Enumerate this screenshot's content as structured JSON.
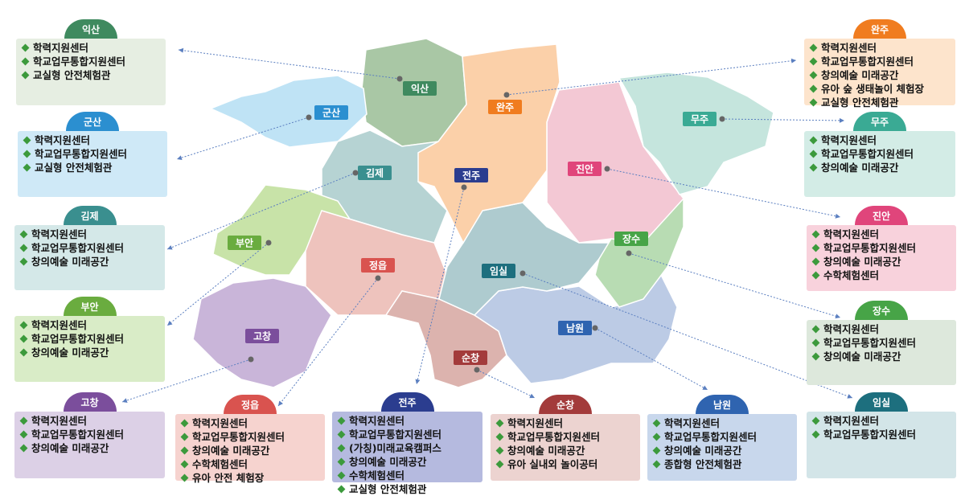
{
  "regions": [
    {
      "name": "익산",
      "color": "#3f8a5f",
      "panel": "#e6eee2",
      "map_color": "#a9c7a5",
      "items": [
        "학력지원센터",
        "학교업무통합지원센터",
        "교실형 안전체험관"
      ]
    },
    {
      "name": "군산",
      "color": "#2b8fd0",
      "panel": "#cfe9f7",
      "map_color": "#bfe3f5",
      "items": [
        "학력지원센터",
        "학교업무통합지원센터",
        "교실형 안전체험관"
      ]
    },
    {
      "name": "김제",
      "color": "#3a8f8f",
      "panel": "#d4e8e8",
      "map_color": "#b6d3d3",
      "items": [
        "학력지원센터",
        "학교업무통합지원센터",
        "창의예술 미래공간"
      ]
    },
    {
      "name": "부안",
      "color": "#6aac3f",
      "panel": "#d9ecc7",
      "map_color": "#c8e3a8",
      "items": [
        "학력지원센터",
        "학교업무통합지원센터",
        "창의예술 미래공간"
      ]
    },
    {
      "name": "고창",
      "color": "#7b4e9c",
      "panel": "#dcd0e6",
      "map_color": "#c9b5d9",
      "items": [
        "학력지원센터",
        "학교업무통합지원센터",
        "창의예술 미래공간"
      ]
    },
    {
      "name": "정읍",
      "color": "#d9534f",
      "panel": "#f6d3cf",
      "map_color": "#eec3bd",
      "items": [
        "학력지원센터",
        "학교업무통합지원센터",
        "창의예술 미래공간",
        "수학체험센터",
        "유아 안전 체험장"
      ]
    },
    {
      "name": "전주",
      "color": "#2b3d8f",
      "panel": "#b5badf",
      "map_color": "#a9acd6",
      "items": [
        "학력지원센터",
        "학교업무통합지원센터",
        "(가칭)미래교육캠퍼스",
        "창의예술 미래공간",
        "수학체험센터",
        "교실형 안전체험관"
      ]
    },
    {
      "name": "순창",
      "color": "#a33b3b",
      "panel": "#ecd3d0",
      "map_color": "#dcb3ae",
      "items": [
        "학력지원센터",
        "학교업무통합지원센터",
        "창의예술 미래공간",
        "유아 실내외 놀이공터"
      ]
    },
    {
      "name": "남원",
      "color": "#2f64b0",
      "panel": "#c8d7ec",
      "map_color": "#bccbe5",
      "items": [
        "학력지원센터",
        "학교업무통합지원센터",
        "창의예술 미래공간",
        "종합형 안전체험관"
      ]
    },
    {
      "name": "임실",
      "color": "#1d6f7e",
      "panel": "#d3e5e8",
      "map_color": "#aecbcf",
      "items": [
        "학력지원센터",
        "학교업무통합지원센터"
      ]
    },
    {
      "name": "장수",
      "color": "#47a447",
      "panel": "#dde8dc",
      "map_color": "#b8dcb3",
      "items": [
        "학력지원센터",
        "학교업무통합지원센터",
        "창의예술 미래공간"
      ]
    },
    {
      "name": "진안",
      "color": "#e0457b",
      "panel": "#f8d2dc",
      "map_color": "#f3c8d4",
      "items": [
        "학력지원센터",
        "학교업무통합지원센터",
        "창의예술 미래공간",
        "수학체험센터"
      ]
    },
    {
      "name": "무주",
      "color": "#3aaa94",
      "panel": "#d3ece6",
      "map_color": "#c5e5dd",
      "items": [
        "학력지원센터",
        "학교업무통합지원센터",
        "창의예술 미래공간"
      ]
    },
    {
      "name": "완주",
      "color": "#f07c1f",
      "panel": "#fde4cc",
      "map_color": "#fbd0a9",
      "items": [
        "학력지원센터",
        "학교업무통합지원센터",
        "창의예술 미래공간",
        "유아 숲 생태놀이 체험장",
        "교실형 안전체험관"
      ]
    }
  ]
}
